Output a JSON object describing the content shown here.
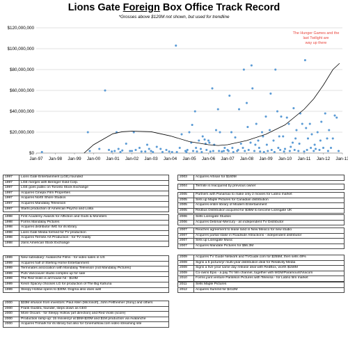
{
  "title": {
    "before": "Lions Gate ",
    "underlined": "Foreign",
    "after": " Box Office Track Record",
    "subtitle": "*Grosses above $120M not shown, but used for trendline"
  },
  "annotation": [
    "The Hunger Games and the",
    "last Twilight are",
    "way up there"
  ],
  "colors": {
    "points": "#5b9bd5",
    "trendline": "#000000",
    "grid": "#d9d9d9",
    "annotation": "#e8453c"
  },
  "chart_data": {
    "type": "scatter",
    "title": "Lions Gate Foreign Box Office Track Record",
    "xlabel": "",
    "ylabel": "",
    "x_ticks": [
      "Jan-97",
      "Jan-98",
      "Jan-99",
      "Jan-00",
      "Jan-01",
      "Jan-02",
      "Jan-03",
      "Jan-04",
      "Jan-05",
      "Jan-06",
      "Jan-07",
      "Jan-08",
      "Jan-09",
      "Jan-10",
      "Jan-11",
      "Jan-12",
      "Jan-13"
    ],
    "y_ticks": [
      "$0",
      "$20,000,000",
      "$40,000,000",
      "$60,000,000",
      "$80,000,000",
      "$100,000,000",
      "$120,000,000"
    ],
    "xlim": [
      1997,
      2013
    ],
    "ylim": [
      0,
      120000000
    ],
    "grid": true,
    "points": [
      [
        1997.3,
        1000000
      ],
      [
        1999.7,
        20000000
      ],
      [
        1999.8,
        2000000
      ],
      [
        2000.3,
        4000000
      ],
      [
        2000.6,
        60000000
      ],
      [
        2000.8,
        3000000
      ],
      [
        2000.95,
        1500000
      ],
      [
        2001.1,
        2000000
      ],
      [
        2001.2,
        20000000
      ],
      [
        2001.3,
        4000000
      ],
      [
        2001.4,
        1000000
      ],
      [
        2001.5,
        2500000
      ],
      [
        2001.7,
        9000000
      ],
      [
        2001.9,
        2000000
      ],
      [
        2002.0,
        2000000
      ],
      [
        2002.1,
        20000000
      ],
      [
        2002.2,
        3000000
      ],
      [
        2002.4,
        5000000
      ],
      [
        2002.5,
        1500000
      ],
      [
        2002.7,
        1500000
      ],
      [
        2002.8,
        8000000
      ],
      [
        2002.9,
        4000000
      ],
      [
        2003.0,
        2000000
      ],
      [
        2003.1,
        1000000
      ],
      [
        2003.3,
        6000000
      ],
      [
        2003.5,
        4000000
      ],
      [
        2003.6,
        1000000
      ],
      [
        2003.8,
        3000000
      ],
      [
        2003.95,
        1500000
      ],
      [
        2004.1,
        1000000
      ],
      [
        2004.3,
        103000000
      ],
      [
        2004.35,
        1000000
      ],
      [
        2004.5,
        5000000
      ],
      [
        2004.6,
        18000000
      ],
      [
        2004.8,
        2000000
      ],
      [
        2004.85,
        1000000
      ],
      [
        2004.9,
        3000000
      ],
      [
        2005.0,
        20000000
      ],
      [
        2005.1,
        10000000
      ],
      [
        2005.15,
        27000000
      ],
      [
        2005.2,
        2000000
      ],
      [
        2005.3,
        40000000
      ],
      [
        2005.35,
        5000000
      ],
      [
        2005.4,
        1500000
      ],
      [
        2005.5,
        12000000
      ],
      [
        2005.6,
        4000000
      ],
      [
        2005.65,
        1000000
      ],
      [
        2005.7,
        16000000
      ],
      [
        2005.8,
        13000000
      ],
      [
        2005.85,
        9000000
      ],
      [
        2005.9,
        3000000
      ],
      [
        2006.0,
        12000000
      ],
      [
        2006.05,
        10000000
      ],
      [
        2006.1,
        1500000
      ],
      [
        2006.2,
        62000000
      ],
      [
        2006.25,
        2000000
      ],
      [
        2006.3,
        8000000
      ],
      [
        2006.4,
        22000000
      ],
      [
        2006.5,
        42000000
      ],
      [
        2006.55,
        2000000
      ],
      [
        2006.6,
        20000000
      ],
      [
        2006.7,
        1500000
      ],
      [
        2006.8,
        2000000
      ],
      [
        2006.85,
        5000000
      ],
      [
        2007.0,
        3000000
      ],
      [
        2007.05,
        2000000
      ],
      [
        2007.1,
        55000000
      ],
      [
        2007.2,
        20000000
      ],
      [
        2007.25,
        5000000
      ],
      [
        2007.3,
        1000000
      ],
      [
        2007.4,
        15000000
      ],
      [
        2007.5,
        2000000
      ],
      [
        2007.55,
        3000000
      ],
      [
        2007.6,
        42000000
      ],
      [
        2007.7,
        9000000
      ],
      [
        2007.8,
        5000000
      ],
      [
        2007.85,
        80000000
      ],
      [
        2007.9,
        2000000
      ],
      [
        2008.0,
        48000000
      ],
      [
        2008.05,
        25000000
      ],
      [
        2008.1,
        3000000
      ],
      [
        2008.2,
        10000000
      ],
      [
        2008.25,
        84000000
      ],
      [
        2008.3,
        62000000
      ],
      [
        2008.4,
        2000000
      ],
      [
        2008.45,
        8000000
      ],
      [
        2008.5,
        28000000
      ],
      [
        2008.6,
        12000000
      ],
      [
        2008.65,
        5000000
      ],
      [
        2008.7,
        1500000
      ],
      [
        2008.8,
        20000000
      ],
      [
        2008.85,
        16000000
      ],
      [
        2008.9,
        1000000
      ],
      [
        2009.0,
        35000000
      ],
      [
        2009.05,
        8000000
      ],
      [
        2009.1,
        2000000
      ],
      [
        2009.2,
        22000000
      ],
      [
        2009.25,
        57000000
      ],
      [
        2009.3,
        3000000
      ],
      [
        2009.4,
        12000000
      ],
      [
        2009.45,
        1000000
      ],
      [
        2009.5,
        80000000
      ],
      [
        2009.6,
        40000000
      ],
      [
        2009.65,
        5000000
      ],
      [
        2009.7,
        16000000
      ],
      [
        2009.75,
        3000000
      ],
      [
        2009.8,
        35000000
      ],
      [
        2009.9,
        16000000
      ],
      [
        2009.95,
        1500000
      ],
      [
        2010.0,
        4000000
      ],
      [
        2010.1,
        34000000
      ],
      [
        2010.2,
        28000000
      ],
      [
        2010.25,
        2000000
      ],
      [
        2010.3,
        6000000
      ],
      [
        2010.4,
        10000000
      ],
      [
        2010.45,
        43000000
      ],
      [
        2010.5,
        3000000
      ],
      [
        2010.55,
        14000000
      ],
      [
        2010.6,
        22000000
      ],
      [
        2010.7,
        2000000
      ],
      [
        2010.75,
        9000000
      ],
      [
        2010.8,
        38000000
      ],
      [
        2010.9,
        28000000
      ],
      [
        2011.0,
        1500000
      ],
      [
        2011.05,
        89000000
      ],
      [
        2011.1,
        24000000
      ],
      [
        2011.15,
        3000000
      ],
      [
        2011.2,
        14000000
      ],
      [
        2011.3,
        28000000
      ],
      [
        2011.35,
        5000000
      ],
      [
        2011.4,
        18000000
      ],
      [
        2011.5,
        2000000
      ],
      [
        2011.55,
        8000000
      ],
      [
        2011.6,
        4000000
      ],
      [
        2011.7,
        20000000
      ],
      [
        2011.8,
        3000000
      ],
      [
        2011.85,
        12000000
      ],
      [
        2011.9,
        30000000
      ],
      [
        2012.0,
        5000000
      ],
      [
        2012.1,
        38000000
      ],
      [
        2012.2,
        14000000
      ],
      [
        2012.25,
        2000000
      ],
      [
        2012.3,
        22000000
      ],
      [
        2012.4,
        5000000
      ],
      [
        2012.5,
        14000000
      ],
      [
        2012.6,
        36000000
      ],
      [
        2012.7,
        34000000
      ],
      [
        2012.8,
        2000000
      ]
    ],
    "trendline": [
      [
        1999.5,
        0
      ],
      [
        2000.0,
        8000000
      ],
      [
        2001.0,
        18500000
      ],
      [
        2001.5,
        20500000
      ],
      [
        2002.0,
        21000000
      ],
      [
        2003.0,
        20500000
      ],
      [
        2004.0,
        16500000
      ],
      [
        2005.0,
        11000000
      ],
      [
        2006.0,
        8000000
      ],
      [
        2006.5,
        7300000
      ],
      [
        2007.0,
        8000000
      ],
      [
        2008.0,
        12000000
      ],
      [
        2009.0,
        18000000
      ],
      [
        2010.0,
        27000000
      ],
      [
        2011.0,
        42000000
      ],
      [
        2011.5,
        52000000
      ],
      [
        2012.0,
        65000000
      ],
      [
        2012.5,
        80000000
      ],
      [
        2012.85,
        86000000
      ]
    ]
  },
  "tables": [
    [
      [
        "1997",
        "Lions Gate Entertainment (LGE) founded"
      ],
      [
        "1997",
        "LGE merges with Beringer Gold Corp."
      ],
      [
        "1997",
        "LGE goes public on Toronto Stock Exchange"
      ],
      [
        "1997",
        "Acquires Cinepix Film Properties"
      ],
      [
        "1997",
        "Acquires North Shore Studios"
      ],
      [
        "1997",
        "Acquires Mandalay Television"
      ],
      [
        "1997",
        "Starts production of American Psycho and Lolita"
      ]
    ],
    [
      [
        "1998",
        "First Academy Awards for Affliction and Gods & Monsters"
      ],
      [
        "1998",
        "Forms Mandalay Pictures"
      ],
      [
        "1998",
        "Acquires distributor IMG for its library"
      ],
      [
        "1998",
        "Lions Gate Media formed for TV production"
      ],
      [
        "1998",
        "Acquires Termite Art Production - for TV reality"
      ],
      [
        "1998",
        "Joins American Stock Exchange"
      ]
    ],
    [
      [
        "1999",
        "New subsidiary: Avalanche Films - for video sales in US"
      ],
      [
        "1999",
        "Acquires half of Sterling Home Entertainment"
      ],
      [
        "1999",
        "Terminates association with Mandalay Television (not Mandalay Pictures)"
      ],
      [
        "1999",
        "Puts Vancouver studio complex up for sale"
      ],
      [
        "1999",
        "The Red Violin is art house hit - $10M"
      ],
      [
        "1999",
        "Kevin Spacey chooses LG for production of The Big Kahuna"
      ],
      [
        "1999",
        "Sleepy Hollow opens to $30M. Dogma also does well"
      ]
    ],
    [
      [
        "2000",
        "$33M infusion from investors: Paul Allen (Microsoft), John Feltheimer (Sony) and others"
      ],
      [
        "2000",
        "Frank Giustra, founder, steps down as CEO"
      ],
      [
        "2000",
        "More Oscars - for Sleepy Hollow (art direction) and Red Violin (score)"
      ],
      [
        "2000",
        "Production ramp-up: 15 movies/yr at $5M-$20M and $1M production via Avalanche"
      ],
      [
        "2000",
        "Acquires Trimark for its library but also for CinemaNow.com video streaming site"
      ]
    ],
    [
      [
        "2003",
        "Acquires Artisan for $160M"
      ]
    ],
    [
      [
        "2004",
        "Termite is reacquired by previous owner"
      ]
    ],
    [
      [
        "2005",
        "Partners with Panamax to make only 2 movies for Latino market"
      ],
      [
        "2005",
        "Sets up Maple Pictures for Canadian distribution"
      ],
      [
        "2005",
        "Acquires entire library of Modern Entertainment"
      ],
      [
        "2005",
        "Redbus Distribution acquired for $35M to become Lionsgate UK"
      ]
    ],
    [
      [
        "2006",
        "Sells Lionsgate Studios"
      ],
      [
        "2006",
        "Acquires Debmar-Mercury - an independent TV Distributor"
      ]
    ],
    [
      [
        "2007",
        "Reaches agreement to lease land in New Mexico for new studio"
      ],
      [
        "2007",
        "Acquires partial stake in Roadside Attractions - independent distributor"
      ],
      [
        "2007",
        "Sets up Lionsgate Music"
      ],
      [
        "2007",
        "Acquires Mandate Pictures for $56.3M"
      ]
    ],
    [
      [
        "2009",
        "Acquires TV Guide Network and TVGuide.com for $255M, then sells 49%"
      ],
      [
        "2009",
        "Signs a 5 picture/yr multi-year distribution deal for Relativity Media"
      ],
      [
        "2009",
        "Signs a five-year same day release deal with RedBox, worth $158M"
      ],
      [
        "2009",
        "Co-owns Epix - a pay TV film channel, together with MGM/Paramount/Viacom"
      ],
      [
        "2010",
        "Forms joint venture Pantelion Pictures with Televisa - for Latino film market"
      ]
    ],
    [
      [
        "2011",
        "Sells Maple Pictures"
      ],
      [
        "2012",
        "Acquires Summit for $412M"
      ]
    ]
  ]
}
